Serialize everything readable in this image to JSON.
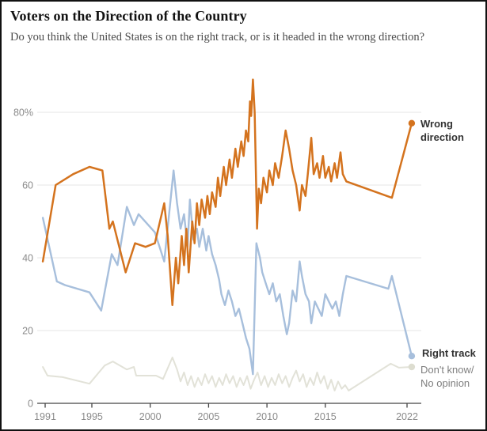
{
  "header": {
    "title": "Voters on the Direction of the Country",
    "subtitle": "Do you think the United States is on the right track, or is it headed in the wrong direction?"
  },
  "colors": {
    "wrong_direction": "#d4731e",
    "right_track": "#a7bfdc",
    "dont_know": "#e2e2d8",
    "gridline": "#e4e4e4",
    "axis": "#444444",
    "tick_label": "#8a8a8a",
    "annotation_dark": "#333333",
    "annotation_gray": "#7f7f7f"
  },
  "chart_data": {
    "type": "line",
    "title": "Voters on the Direction of the Country",
    "xlabel": "",
    "ylabel": "",
    "xlim": [
      1990.32,
      2023.22
    ],
    "ylim": [
      0,
      90
    ],
    "grid": "horizontal",
    "legend_position": "right-annotations",
    "x_ticks": [
      1991,
      1995,
      2000,
      2005,
      2010,
      2015,
      2022
    ],
    "x_tick_labels": [
      "1991",
      "1995",
      "2000",
      "2005",
      "2010",
      "2015",
      "2022"
    ],
    "y_ticks": [
      0,
      20,
      40,
      60,
      80
    ],
    "y_tick_labels": [
      "0",
      "20",
      "40",
      "60",
      "80%"
    ],
    "series": [
      {
        "name": "Don't know/ No opinion",
        "color": "#e2e2d8",
        "stroke_width": 2,
        "end_dot": true,
        "dot_color": "#ddddd0",
        "points": [
          [
            1990.8,
            10
          ],
          [
            1991.2,
            7.6
          ],
          [
            1992.5,
            7.2
          ],
          [
            1994.8,
            5.4
          ],
          [
            1996.1,
            10.4
          ],
          [
            1996.8,
            11.5
          ],
          [
            1998.0,
            9.3
          ],
          [
            1998.6,
            10
          ],
          [
            1998.8,
            7.6
          ],
          [
            2000.5,
            7.6
          ],
          [
            2001.1,
            6.7
          ],
          [
            2001.9,
            12.6
          ],
          [
            2002.3,
            9.3
          ],
          [
            2002.6,
            6
          ],
          [
            2002.9,
            8.5
          ],
          [
            2003.2,
            5
          ],
          [
            2003.5,
            7.5
          ],
          [
            2003.8,
            4.5
          ],
          [
            2004.1,
            7
          ],
          [
            2004.4,
            5
          ],
          [
            2004.7,
            8
          ],
          [
            2005.0,
            5.5
          ],
          [
            2005.3,
            7.5
          ],
          [
            2005.6,
            4.5
          ],
          [
            2005.9,
            7
          ],
          [
            2006.2,
            5
          ],
          [
            2006.5,
            8
          ],
          [
            2006.8,
            5.5
          ],
          [
            2007.1,
            7.5
          ],
          [
            2007.4,
            4.5
          ],
          [
            2007.7,
            7
          ],
          [
            2008.0,
            5
          ],
          [
            2008.3,
            7.5
          ],
          [
            2008.6,
            4
          ],
          [
            2008.9,
            6.5
          ],
          [
            2009.2,
            8.5
          ],
          [
            2009.5,
            5
          ],
          [
            2009.8,
            7.5
          ],
          [
            2010.1,
            4.5
          ],
          [
            2010.4,
            7
          ],
          [
            2010.7,
            5
          ],
          [
            2011.0,
            8
          ],
          [
            2011.3,
            5.5
          ],
          [
            2011.6,
            7.5
          ],
          [
            2011.9,
            4.5
          ],
          [
            2012.2,
            7
          ],
          [
            2012.5,
            9
          ],
          [
            2012.8,
            6
          ],
          [
            2013.1,
            8
          ],
          [
            2013.4,
            4.5
          ],
          [
            2013.7,
            7
          ],
          [
            2014.0,
            5
          ],
          [
            2014.3,
            8.5
          ],
          [
            2014.6,
            5.5
          ],
          [
            2014.9,
            7.5
          ],
          [
            2015.2,
            4
          ],
          [
            2015.5,
            6.5
          ],
          [
            2015.8,
            3.5
          ],
          [
            2016.1,
            6
          ],
          [
            2016.4,
            4
          ],
          [
            2016.7,
            5
          ],
          [
            2017.0,
            3.5
          ],
          [
            2020.6,
            10.9
          ],
          [
            2021.3,
            9.8
          ],
          [
            2022.4,
            10
          ]
        ]
      },
      {
        "name": "Right track",
        "color": "#a7bfdc",
        "stroke_width": 2.4,
        "end_dot": true,
        "dot_color": "#a7bfdc",
        "points": [
          [
            1990.8,
            51
          ],
          [
            1992.0,
            33.5
          ],
          [
            1992.7,
            32.5
          ],
          [
            1994.8,
            30.5
          ],
          [
            1995.8,
            25.5
          ],
          [
            1996.7,
            41
          ],
          [
            1997.2,
            38
          ],
          [
            1998.0,
            54
          ],
          [
            1998.6,
            49
          ],
          [
            1999.0,
            52
          ],
          [
            2000.4,
            47
          ],
          [
            2001.2,
            39
          ],
          [
            2002.0,
            64
          ],
          [
            2002.3,
            55
          ],
          [
            2002.6,
            48
          ],
          [
            2002.9,
            52
          ],
          [
            2003.2,
            43
          ],
          [
            2003.4,
            56
          ],
          [
            2003.7,
            45
          ],
          [
            2004.0,
            48
          ],
          [
            2004.2,
            43
          ],
          [
            2004.5,
            48
          ],
          [
            2004.8,
            42
          ],
          [
            2005.0,
            46
          ],
          [
            2005.3,
            41
          ],
          [
            2005.6,
            38
          ],
          [
            2005.9,
            34
          ],
          [
            2006.1,
            30
          ],
          [
            2006.4,
            27
          ],
          [
            2006.7,
            31
          ],
          [
            2007.0,
            28
          ],
          [
            2007.3,
            24
          ],
          [
            2007.6,
            26
          ],
          [
            2007.9,
            22
          ],
          [
            2008.2,
            18
          ],
          [
            2008.5,
            15
          ],
          [
            2008.8,
            8
          ],
          [
            2009.1,
            44
          ],
          [
            2009.4,
            40
          ],
          [
            2009.6,
            36
          ],
          [
            2009.9,
            33
          ],
          [
            2010.2,
            30
          ],
          [
            2010.5,
            33
          ],
          [
            2010.8,
            28
          ],
          [
            2011.1,
            30
          ],
          [
            2011.4,
            24
          ],
          [
            2011.7,
            19
          ],
          [
            2011.9,
            22
          ],
          [
            2012.2,
            31
          ],
          [
            2012.5,
            28
          ],
          [
            2012.8,
            39
          ],
          [
            2013.0,
            35
          ],
          [
            2013.3,
            30
          ],
          [
            2013.6,
            28
          ],
          [
            2013.8,
            22
          ],
          [
            2014.1,
            28
          ],
          [
            2014.4,
            26
          ],
          [
            2014.7,
            24
          ],
          [
            2015.0,
            30
          ],
          [
            2015.3,
            28
          ],
          [
            2015.6,
            26
          ],
          [
            2015.9,
            28
          ],
          [
            2016.2,
            24
          ],
          [
            2016.5,
            30
          ],
          [
            2016.8,
            35
          ],
          [
            2020.4,
            31.5
          ],
          [
            2020.7,
            35
          ],
          [
            2022.4,
            13
          ]
        ]
      },
      {
        "name": "Wrong direction",
        "color": "#d4731e",
        "stroke_width": 2.5,
        "end_dot": true,
        "dot_color": "#d4731e",
        "points": [
          [
            1990.8,
            39
          ],
          [
            1991.9,
            60
          ],
          [
            1993.4,
            63
          ],
          [
            1994.8,
            65
          ],
          [
            1995.9,
            64
          ],
          [
            1996.5,
            48
          ],
          [
            1996.8,
            50
          ],
          [
            1997.9,
            36
          ],
          [
            1998.7,
            44
          ],
          [
            1999.6,
            43
          ],
          [
            2000.4,
            44
          ],
          [
            2001.2,
            55
          ],
          [
            2001.5,
            46
          ],
          [
            2001.9,
            27
          ],
          [
            2002.2,
            40
          ],
          [
            2002.4,
            33
          ],
          [
            2002.7,
            46
          ],
          [
            2002.9,
            38
          ],
          [
            2003.1,
            48
          ],
          [
            2003.3,
            36
          ],
          [
            2003.6,
            50
          ],
          [
            2003.8,
            44
          ],
          [
            2004.0,
            55
          ],
          [
            2004.2,
            49
          ],
          [
            2004.4,
            56
          ],
          [
            2004.7,
            51
          ],
          [
            2004.9,
            57
          ],
          [
            2005.1,
            52
          ],
          [
            2005.3,
            58
          ],
          [
            2005.6,
            54
          ],
          [
            2005.8,
            62
          ],
          [
            2006.0,
            57
          ],
          [
            2006.3,
            65
          ],
          [
            2006.5,
            60
          ],
          [
            2006.8,
            67
          ],
          [
            2007.0,
            62
          ],
          [
            2007.3,
            70
          ],
          [
            2007.5,
            65
          ],
          [
            2007.8,
            72
          ],
          [
            2008.0,
            68
          ],
          [
            2008.2,
            75
          ],
          [
            2008.4,
            72
          ],
          [
            2008.55,
            83
          ],
          [
            2008.65,
            79
          ],
          [
            2008.8,
            89
          ],
          [
            2008.95,
            80
          ],
          [
            2009.15,
            48
          ],
          [
            2009.3,
            59
          ],
          [
            2009.5,
            55
          ],
          [
            2009.7,
            62
          ],
          [
            2010.0,
            58
          ],
          [
            2010.2,
            64
          ],
          [
            2010.5,
            60
          ],
          [
            2010.7,
            66
          ],
          [
            2011.0,
            62
          ],
          [
            2011.3,
            68
          ],
          [
            2011.6,
            75
          ],
          [
            2011.9,
            70
          ],
          [
            2012.2,
            64
          ],
          [
            2012.5,
            60
          ],
          [
            2012.8,
            53
          ],
          [
            2013.0,
            60
          ],
          [
            2013.3,
            57
          ],
          [
            2013.5,
            63
          ],
          [
            2013.8,
            73
          ],
          [
            2014.0,
            63
          ],
          [
            2014.3,
            66
          ],
          [
            2014.5,
            62
          ],
          [
            2014.8,
            68
          ],
          [
            2015.0,
            62
          ],
          [
            2015.3,
            65
          ],
          [
            2015.5,
            61
          ],
          [
            2015.8,
            66
          ],
          [
            2016.0,
            62
          ],
          [
            2016.3,
            69
          ],
          [
            2016.5,
            63
          ],
          [
            2016.8,
            61
          ],
          [
            2020.7,
            56.5
          ],
          [
            2022.4,
            77
          ]
        ]
      }
    ],
    "annotations": {
      "wrong_direction_label": "Wrong direction",
      "right_track_label": "Right track",
      "dont_know_label": "Don't know/ No opinion"
    }
  }
}
